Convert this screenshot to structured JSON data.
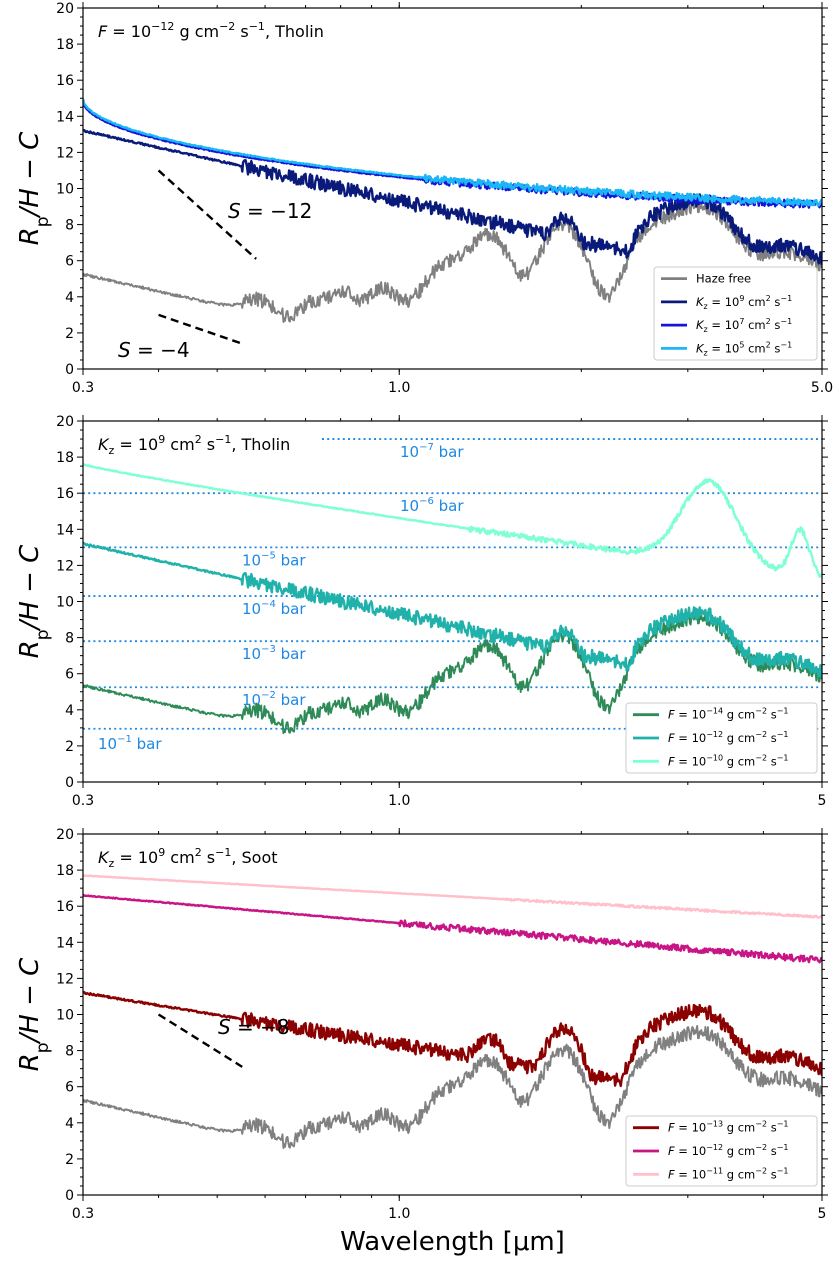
{
  "figure": {
    "ylabel_html": "R<tspan font-size='17' baseline-shift='sub' font-style='normal'>p</tspan>/H − C",
    "xlabel": "Wavelength [μm]"
  },
  "chart_data": [
    {
      "type": "line",
      "title": "F = 10^-12 g cm^-2 s^-1, Tholin",
      "xscale": "log",
      "xlim": [
        0.3,
        5.0
      ],
      "ylim": [
        0,
        20
      ],
      "xticks": [
        0.3,
        1.0,
        5.0
      ],
      "xtick_labels": [
        "0.3",
        "1.0",
        "5.0"
      ],
      "yticks": [
        0,
        2,
        4,
        6,
        8,
        10,
        12,
        14,
        16,
        18,
        20
      ],
      "ylabel": "Rp/H − C",
      "legend_position": "lower-right",
      "series": [
        {
          "name": "Haze free",
          "color": "#808080",
          "profile": "clear",
          "offset": 0
        },
        {
          "name": "Kz = 10^9 cm^2 s^-1",
          "color": "#0a1a7a",
          "profile": "ray_steep",
          "offset": 0
        },
        {
          "name": "Kz = 10^7 cm^2 s^-1",
          "color": "#1515d9",
          "profile": "flat_high",
          "offset": -0.1
        },
        {
          "name": "Kz = 10^5 cm^2 s^-1",
          "color": "#1ab6f6",
          "profile": "flat_high",
          "offset": 0
        }
      ],
      "annotations": [
        {
          "text": "S = −12",
          "x1": 0.4,
          "y1": 11.0,
          "x2": 0.58,
          "y2": 6.1
        },
        {
          "text": "S = −4",
          "x1": 0.4,
          "y1": 3.0,
          "x2": 0.55,
          "y2": 1.4
        }
      ]
    },
    {
      "type": "line",
      "title": "Kz = 10^9 cm^2 s^-1, Tholin",
      "xscale": "log",
      "xlim": [
        0.3,
        5.0
      ],
      "ylim": [
        0,
        20
      ],
      "xticks": [
        0.3,
        1.0,
        5.0
      ],
      "xtick_labels": [
        "0.3",
        "1.0",
        "5"
      ],
      "yticks": [
        0,
        2,
        4,
        6,
        8,
        10,
        12,
        14,
        16,
        18,
        20
      ],
      "ylabel": "Rp/H − C",
      "legend_position": "lower-right",
      "series": [
        {
          "name": "F = 10^-14 g cm^-2 s^-1",
          "color": "#2e8b57",
          "profile": "clear",
          "offset": 0.1
        },
        {
          "name": "F = 10^-12 g cm^-2 s^-1",
          "color": "#20b2aa",
          "profile": "ray_steep",
          "offset": 0
        },
        {
          "name": "F = 10^-10 g cm^-2 s^-1",
          "color": "#7fffd4",
          "profile": "very_high",
          "offset": 0
        }
      ],
      "pressure_levels": [
        {
          "label": "10^-7 bar",
          "y": 19.0
        },
        {
          "label": "10^-6 bar",
          "y": 16.0
        },
        {
          "label": "10^-5 bar",
          "y": 13.0
        },
        {
          "label": "10^-4 bar",
          "y": 10.3
        },
        {
          "label": "10^-3 bar",
          "y": 7.8
        },
        {
          "label": "10^-2 bar",
          "y": 5.25
        },
        {
          "label": "10^-1 bar",
          "y": 2.95
        }
      ]
    },
    {
      "type": "line",
      "title": "Kz = 10^9 cm^2 s^-1, Soot",
      "xscale": "log",
      "xlim": [
        0.3,
        5.0
      ],
      "ylim": [
        0,
        20
      ],
      "xticks": [
        0.3,
        1.0,
        5.0
      ],
      "xtick_labels": [
        "0.3",
        "1.0",
        "5"
      ],
      "yticks": [
        0,
        2,
        4,
        6,
        8,
        10,
        12,
        14,
        16,
        18,
        20
      ],
      "ylabel": "Rp/H − C",
      "xlabel": "Wavelength [μm]",
      "legend_position": "lower-right",
      "series": [
        {
          "name": "Haze free",
          "color": "#808080",
          "profile": "clear",
          "offset": 0,
          "in_legend": false
        },
        {
          "name": "F = 10^-13 g cm^-2 s^-1",
          "color": "#8b0000",
          "profile": "soot_low",
          "offset": 0
        },
        {
          "name": "F = 10^-12 g cm^-2 s^-1",
          "color": "#c71585",
          "profile": "soot_mid",
          "offset": 0
        },
        {
          "name": "F = 10^-11 g cm^-2 s^-1",
          "color": "#ffc0cb",
          "profile": "soot_high",
          "offset": 0
        }
      ],
      "annotations": [
        {
          "text": "S = −8",
          "x1": 0.4,
          "y1": 10.0,
          "x2": 0.55,
          "y2": 7.1
        }
      ]
    }
  ],
  "panel_titles_html": [
    "<tspan font-style='italic'>F</tspan> = 10<tspan font-size='11' dy='-7'>−12</tspan><tspan dy='7'> g cm</tspan><tspan font-size='11' dy='-7'>−2</tspan><tspan dy='7'> s</tspan><tspan font-size='11' dy='-7'>−1</tspan><tspan dy='7'>, Tholin</tspan>",
    "<tspan font-style='italic'>K</tspan><tspan font-size='11' dy='4'>z</tspan><tspan dy='-4'> = 10</tspan><tspan font-size='11' dy='-7'>9</tspan><tspan dy='7'> cm</tspan><tspan font-size='11' dy='-7'>2</tspan><tspan dy='7'> s</tspan><tspan font-size='11' dy='-7'>−1</tspan><tspan dy='7'>, Tholin</tspan>",
    "<tspan font-style='italic'>K</tspan><tspan font-size='11' dy='4'>z</tspan><tspan dy='-4'> = 10</tspan><tspan font-size='11' dy='-7'>9</tspan><tspan dy='7'> cm</tspan><tspan font-size='11' dy='-7'>2</tspan><tspan dy='7'> s</tspan><tspan font-size='11' dy='-7'>−1</tspan><tspan dy='7'>, Soot</tspan>"
  ],
  "legend_labels_html": [
    [
      "Haze free",
      "<tspan font-style='italic'>K</tspan><tspan font-size='8' dy='3'>z</tspan><tspan dy='-3'> = 10</tspan><tspan font-size='8' dy='-5'>9</tspan><tspan dy='5'> cm</tspan><tspan font-size='8' dy='-5'>2</tspan><tspan dy='5'> s</tspan><tspan font-size='8' dy='-5'>−1</tspan>",
      "<tspan font-style='italic'>K</tspan><tspan font-size='8' dy='3'>z</tspan><tspan dy='-3'> = 10</tspan><tspan font-size='8' dy='-5'>7</tspan><tspan dy='5'> cm</tspan><tspan font-size='8' dy='-5'>2</tspan><tspan dy='5'> s</tspan><tspan font-size='8' dy='-5'>−1</tspan>",
      "<tspan font-style='italic'>K</tspan><tspan font-size='8' dy='3'>z</tspan><tspan dy='-3'> = 10</tspan><tspan font-size='8' dy='-5'>5</tspan><tspan dy='5'> cm</tspan><tspan font-size='8' dy='-5'>2</tspan><tspan dy='5'> s</tspan><tspan font-size='8' dy='-5'>−1</tspan>"
    ],
    [
      "<tspan font-style='italic'>F</tspan> = 10<tspan font-size='8' dy='-5'>−14</tspan><tspan dy='5'> g cm</tspan><tspan font-size='8' dy='-5'>−2</tspan><tspan dy='5'> s</tspan><tspan font-size='8' dy='-5'>−1</tspan>",
      "<tspan font-style='italic'>F</tspan> = 10<tspan font-size='8' dy='-5'>−12</tspan><tspan dy='5'> g cm</tspan><tspan font-size='8' dy='-5'>−2</tspan><tspan dy='5'> s</tspan><tspan font-size='8' dy='-5'>−1</tspan>",
      "<tspan font-style='italic'>F</tspan> = 10<tspan font-size='8' dy='-5'>−10</tspan><tspan dy='5'> g cm</tspan><tspan font-size='8' dy='-5'>−2</tspan><tspan dy='5'> s</tspan><tspan font-size='8' dy='-5'>−1</tspan>"
    ],
    [
      "<tspan font-style='italic'>F</tspan> = 10<tspan font-size='8' dy='-5'>−13</tspan><tspan dy='5'> g cm</tspan><tspan font-size='8' dy='-5'>−2</tspan><tspan dy='5'> s</tspan><tspan font-size='8' dy='-5'>−1</tspan>",
      "<tspan font-style='italic'>F</tspan> = 10<tspan font-size='8' dy='-5'>−12</tspan><tspan dy='5'> g cm</tspan><tspan font-size='8' dy='-5'>−2</tspan><tspan dy='5'> s</tspan><tspan font-size='8' dy='-5'>−1</tspan>",
      "<tspan font-style='italic'>F</tspan> = 10<tspan font-size='8' dy='-5'>−11</tspan><tspan dy='5'> g cm</tspan><tspan font-size='8' dy='-5'>−2</tspan><tspan dy='5'> s</tspan><tspan font-size='8' dy='-5'>−1</tspan>"
    ]
  ],
  "annotation_labels_html": [
    [
      "<tspan font-style='italic'>S</tspan> = −12",
      "<tspan font-style='italic'>S</tspan> = −4"
    ],
    [],
    [
      "<tspan font-style='italic'>S</tspan> = −8"
    ]
  ],
  "pressure_labels_html": [
    "10<tspan font-size='10' dy='-7'>−7</tspan><tspan dy='7'> bar</tspan>",
    "10<tspan font-size='10' dy='-7'>−6</tspan><tspan dy='7'> bar</tspan>",
    "10<tspan font-size='10' dy='-7'>−5</tspan><tspan dy='7'> bar</tspan>",
    "10<tspan font-size='10' dy='-7'>−4</tspan><tspan dy='7'> bar</tspan>",
    "10<tspan font-size='10' dy='-7'>−3</tspan><tspan dy='7'> bar</tspan>",
    "10<tspan font-size='10' dy='-7'>−2</tspan><tspan dy='7'> bar</tspan>",
    "10<tspan font-size='10' dy='-7'>−1</tspan><tspan dy='7'> bar</tspan>"
  ]
}
